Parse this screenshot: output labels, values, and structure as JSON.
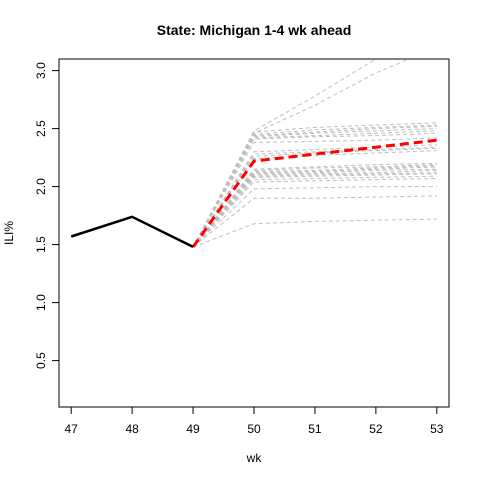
{
  "chart_data": {
    "type": "line",
    "title": "State: Michigan 1-4 wk ahead",
    "xlabel": "wk",
    "ylabel": "ILI%",
    "xlim": [
      46.8,
      53.2
    ],
    "ylim": [
      0.1,
      3.1
    ],
    "x_ticks": [
      47,
      48,
      49,
      50,
      51,
      52,
      53
    ],
    "y_ticks": [
      0.5,
      1.0,
      1.5,
      2.0,
      2.5,
      3.0
    ],
    "observed": {
      "x": [
        47,
        48,
        49
      ],
      "y": [
        1.57,
        1.74,
        1.48
      ],
      "color": "#000000"
    },
    "forecast_mean": {
      "x": [
        49,
        50,
        51,
        52,
        53
      ],
      "y": [
        1.48,
        2.22,
        2.28,
        2.34,
        2.4
      ],
      "color": "#ff0000"
    },
    "trajectories_color": "#bebebe",
    "trajectories": [
      [
        1.48,
        2.48,
        2.78,
        3.1,
        3.4
      ],
      [
        1.48,
        2.46,
        2.7,
        2.98,
        3.2
      ],
      [
        1.48,
        2.47,
        2.51,
        2.53,
        2.55
      ],
      [
        1.48,
        2.45,
        2.49,
        2.51,
        2.53
      ],
      [
        1.48,
        2.44,
        2.47,
        2.5,
        2.52
      ],
      [
        1.48,
        2.43,
        2.46,
        2.48,
        2.5
      ],
      [
        1.48,
        2.42,
        2.44,
        2.46,
        2.48
      ],
      [
        1.48,
        2.41,
        2.43,
        2.44,
        2.46
      ],
      [
        1.48,
        2.38,
        2.39,
        2.4,
        2.42
      ],
      [
        1.48,
        2.3,
        2.32,
        2.34,
        2.36
      ],
      [
        1.48,
        2.28,
        2.3,
        2.32,
        2.34
      ],
      [
        1.48,
        2.26,
        2.29,
        2.31,
        2.33
      ],
      [
        1.48,
        2.24,
        2.27,
        2.29,
        2.31
      ],
      [
        1.48,
        2.15,
        2.17,
        2.19,
        2.2
      ],
      [
        1.48,
        2.14,
        2.16,
        2.17,
        2.19
      ],
      [
        1.48,
        2.13,
        2.14,
        2.16,
        2.18
      ],
      [
        1.48,
        2.12,
        2.13,
        2.15,
        2.17
      ],
      [
        1.48,
        2.11,
        2.12,
        2.14,
        2.15
      ],
      [
        1.48,
        2.1,
        2.11,
        2.12,
        2.14
      ],
      [
        1.48,
        2.09,
        2.1,
        2.11,
        2.12
      ],
      [
        1.48,
        2.08,
        2.09,
        2.1,
        2.11
      ],
      [
        1.48,
        2.06,
        2.07,
        2.08,
        2.09
      ],
      [
        1.48,
        2.04,
        2.05,
        2.06,
        2.07
      ],
      [
        1.48,
        1.98,
        1.99,
        2.0,
        2.0
      ],
      [
        1.48,
        1.9,
        1.9,
        1.91,
        1.92
      ],
      [
        1.48,
        1.68,
        1.7,
        1.71,
        1.72
      ]
    ]
  }
}
